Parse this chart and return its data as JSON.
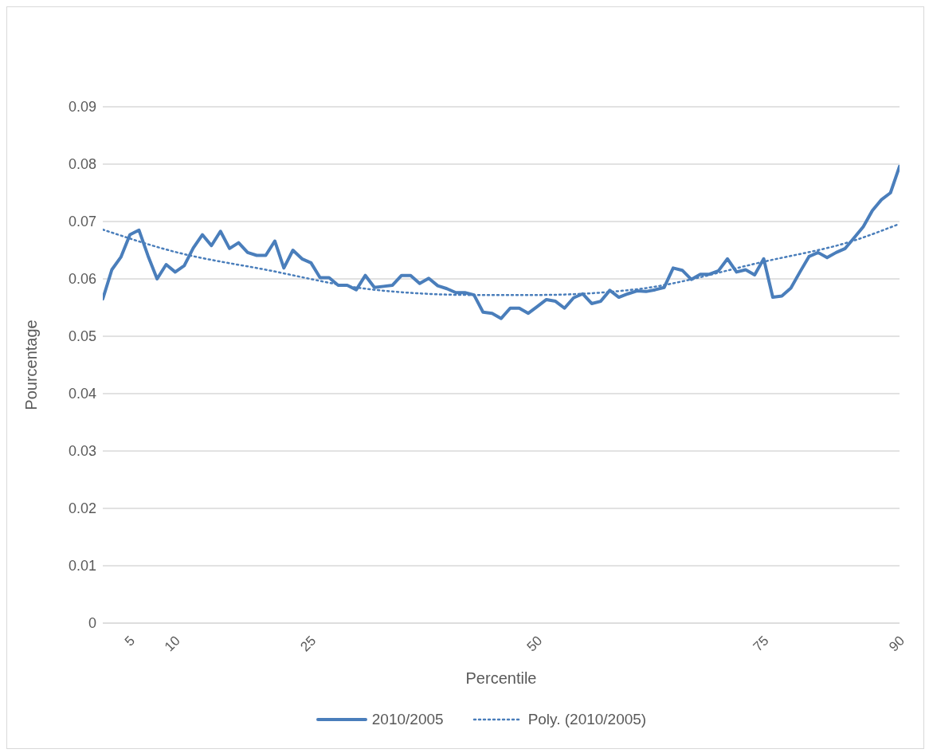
{
  "chart_data": {
    "type": "line",
    "xlabel": "Percentile",
    "ylabel": "Pourcentage",
    "x": [
      2,
      3,
      4,
      5,
      6,
      7,
      8,
      9,
      10,
      11,
      12,
      13,
      14,
      15,
      16,
      17,
      18,
      19,
      20,
      21,
      22,
      23,
      24,
      25,
      26,
      27,
      28,
      29,
      30,
      31,
      32,
      33,
      34,
      35,
      36,
      37,
      38,
      39,
      40,
      41,
      42,
      43,
      44,
      45,
      46,
      47,
      48,
      49,
      50,
      51,
      52,
      53,
      54,
      55,
      56,
      57,
      58,
      59,
      60,
      61,
      62,
      63,
      64,
      65,
      66,
      67,
      68,
      69,
      70,
      71,
      72,
      73,
      74,
      75,
      76,
      77,
      78,
      79,
      80,
      81,
      82,
      83,
      84,
      85,
      86,
      87,
      88,
      89,
      90
    ],
    "xlim": [
      2,
      90
    ],
    "xticks": [
      5,
      10,
      25,
      50,
      75,
      90
    ],
    "ylim": [
      0,
      0.09
    ],
    "yticks": [
      0,
      0.01,
      0.02,
      0.03,
      0.04,
      0.05,
      0.06,
      0.07,
      0.08,
      0.09
    ],
    "grid": "y",
    "legend": "bottom",
    "marker": "none",
    "series": [
      {
        "name": "2010/2005",
        "color": "#4a7ebb",
        "line_style": "solid",
        "values": [
          0.0565,
          0.0616,
          0.0638,
          0.0677,
          0.0685,
          0.064,
          0.06,
          0.0625,
          0.0612,
          0.0623,
          0.0654,
          0.0677,
          0.0658,
          0.0683,
          0.0653,
          0.0663,
          0.0646,
          0.0641,
          0.0641,
          0.0666,
          0.0619,
          0.065,
          0.0635,
          0.0628,
          0.0602,
          0.0602,
          0.0589,
          0.0589,
          0.0581,
          0.0606,
          0.0585,
          0.0587,
          0.0589,
          0.0606,
          0.0606,
          0.0592,
          0.0601,
          0.0588,
          0.0583,
          0.0576,
          0.0576,
          0.0572,
          0.0542,
          0.054,
          0.0531,
          0.0549,
          0.0549,
          0.054,
          0.0552,
          0.0564,
          0.0561,
          0.0549,
          0.0567,
          0.0574,
          0.0557,
          0.0561,
          0.058,
          0.0568,
          0.0574,
          0.0579,
          0.0578,
          0.0581,
          0.0585,
          0.0619,
          0.0615,
          0.0599,
          0.0608,
          0.0608,
          0.0614,
          0.0635,
          0.0612,
          0.0616,
          0.0607,
          0.0635,
          0.0568,
          0.057,
          0.0584,
          0.0612,
          0.0639,
          0.0646,
          0.0637,
          0.0646,
          0.0653,
          0.0672,
          0.0691,
          0.0719,
          0.0738,
          0.075,
          0.0796
        ]
      },
      {
        "name": "Poly.  (2010/2005)",
        "type": "line",
        "color": "#4a7ebb",
        "line_style": "dotted",
        "x": [
          2,
          10,
          20,
          32,
          43,
          50,
          61,
          75,
          85,
          90
        ],
        "values": [
          0.0686,
          0.0647,
          0.0616,
          0.0581,
          0.0572,
          0.0572,
          0.0582,
          0.063,
          0.0667,
          0.0696
        ]
      }
    ]
  }
}
